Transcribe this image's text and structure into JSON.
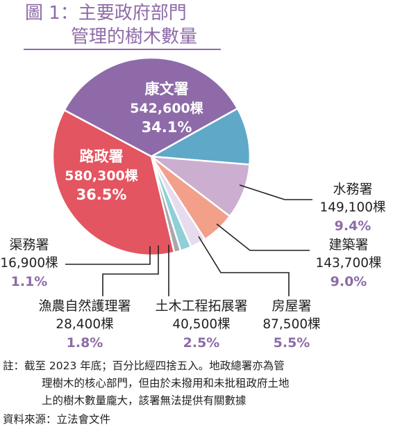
{
  "title": {
    "line1": "圖 1：主要政府部門",
    "line2": "管理的樹木數量"
  },
  "chart_data": {
    "type": "pie",
    "title": "圖 1：主要政府部門 管理的樹木數量",
    "unit": "棵",
    "slices": [
      {
        "name": "康文署",
        "value_label": "542,600棵",
        "value": 542600,
        "percent": "34.1%",
        "color": "#8e6ba8"
      },
      {
        "name": "水務署",
        "value_label": "149,100棵",
        "value": 149100,
        "percent": "9.4%",
        "color": "#5fa8c8"
      },
      {
        "name": "建築署",
        "value_label": "143,700棵",
        "value": 143700,
        "percent": "9.0%",
        "color": "#cbaed0"
      },
      {
        "name": "房屋署",
        "value_label": "87,500棵",
        "value": 87500,
        "percent": "5.5%",
        "color": "#f2a08a"
      },
      {
        "name": "土木工程拓展署",
        "value_label": "40,500棵",
        "value": 40500,
        "percent": "2.5%",
        "color": "#e6dcee"
      },
      {
        "name": "漁農自然護理署",
        "value_label": "28,400棵",
        "value": 28400,
        "percent": "1.8%",
        "color": "#8fcfd8"
      },
      {
        "name": "渠務署",
        "value_label": "16,900棵",
        "value": 16900,
        "percent": "1.1%",
        "color": "#a8a8aa"
      },
      {
        "name": "路政署",
        "value_label": "580,300棵",
        "value": 580300,
        "percent": "36.5%",
        "color": "#e35560"
      }
    ]
  },
  "notes": {
    "note_line1": "註：截至 2023 年底；百分比經四捨五入。地政總署亦為管",
    "note_line2": "理樹木的核心部門，但由於未撥用和未批租政府土地",
    "note_line3": "上的樹木數量龐大，該署無法提供有關數據",
    "source": "資料來源：立法會文件"
  }
}
